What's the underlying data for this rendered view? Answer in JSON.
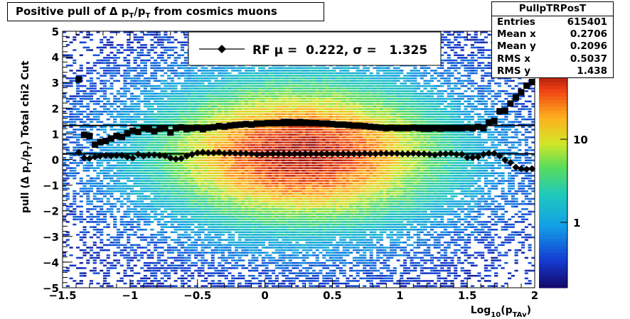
{
  "title": {
    "main": "Positive pull of Δ p",
    "sub1": "T",
    "mid": "/p",
    "sub2": "T",
    "tail": " from cosmics muons"
  },
  "stats": {
    "title": "PullpTRPosT",
    "rows": [
      {
        "label": "Entries",
        "value": "615401"
      },
      {
        "label": "Mean x",
        "value": "0.2706"
      },
      {
        "label": "Mean y",
        "value": "0.2096"
      },
      {
        "label": "RMS x",
        "value": "0.5037"
      },
      {
        "label": "RMS y",
        "value": "1.438"
      }
    ]
  },
  "legend": {
    "text": "RF μ =  0.222, σ =   1.325"
  },
  "chart_data": {
    "type": "heatmap",
    "title": "Positive pull of Δ pT/pT from cosmics muons",
    "xlabel": "Log10(pTAv)",
    "ylabel": "pull (Δ pT/pT)  Total chi2 Cut",
    "xlim": [
      -1.5,
      2
    ],
    "ylim": [
      -5,
      5
    ],
    "colorbar": {
      "scale": "log",
      "tick_labels": [
        "1",
        "10"
      ]
    },
    "x_tick_labels": [
      "−1.5",
      "−1",
      "−0.5",
      "0",
      "0.5",
      "1",
      "1.5",
      "2"
    ],
    "y_tick_labels": [
      "−5",
      "−4",
      "−3",
      "−2",
      "−1",
      "0",
      "1",
      "2",
      "3",
      "4",
      "5"
    ],
    "fit_lines": {
      "mean": 0.222,
      "sigma": 1.325
    },
    "series": [
      {
        "name": "σ",
        "x": [
          -1.38,
          -1.34,
          -1.3,
          -1.26,
          -1.22,
          -1.18,
          -1.14,
          -1.1,
          -1.06,
          -1.02,
          -0.98,
          -0.94,
          -0.9,
          -0.86,
          -0.82,
          -0.78,
          -0.74,
          -0.7,
          -0.66,
          -0.62,
          -0.58,
          -0.54,
          -0.5,
          -0.46,
          -0.42,
          -0.38,
          -0.34,
          -0.3,
          -0.26,
          -0.22,
          -0.18,
          -0.14,
          -0.1,
          -0.06,
          -0.02,
          0.02,
          0.06,
          0.1,
          0.14,
          0.18,
          0.22,
          0.26,
          0.3,
          0.34,
          0.38,
          0.42,
          0.46,
          0.5,
          0.54,
          0.58,
          0.62,
          0.66,
          0.7,
          0.74,
          0.78,
          0.82,
          0.86,
          0.9,
          0.94,
          0.98,
          1.02,
          1.06,
          1.1,
          1.14,
          1.18,
          1.22,
          1.26,
          1.3,
          1.34,
          1.38,
          1.42,
          1.46,
          1.5,
          1.54,
          1.58,
          1.62,
          1.66,
          1.7,
          1.74,
          1.78,
          1.82,
          1.86,
          1.9,
          1.94,
          1.98
        ],
        "y": [
          3.12,
          0.96,
          0.92,
          0.58,
          0.68,
          0.72,
          0.82,
          0.92,
          0.88,
          1.02,
          1.12,
          1.08,
          1.22,
          1.18,
          1.1,
          1.2,
          1.22,
          1.05,
          1.22,
          1.25,
          1.18,
          1.22,
          1.24,
          1.18,
          1.24,
          1.26,
          1.3,
          1.28,
          1.32,
          1.34,
          1.36,
          1.38,
          1.36,
          1.4,
          1.4,
          1.42,
          1.42,
          1.42,
          1.46,
          1.46,
          1.44,
          1.46,
          1.44,
          1.42,
          1.42,
          1.4,
          1.4,
          1.38,
          1.36,
          1.36,
          1.34,
          1.32,
          1.32,
          1.3,
          1.28,
          1.26,
          1.24,
          1.22,
          1.24,
          1.22,
          1.22,
          1.22,
          1.24,
          1.22,
          1.2,
          1.2,
          1.22,
          1.2,
          1.22,
          1.22,
          1.22,
          1.22,
          1.24,
          1.22,
          1.28,
          1.22,
          1.44,
          1.5,
          1.88,
          1.9,
          2.18,
          2.42,
          2.62,
          2.88,
          3.02
        ]
      },
      {
        "name": "μ",
        "x": [
          -1.38,
          -1.34,
          -1.3,
          -1.26,
          -1.22,
          -1.18,
          -1.14,
          -1.1,
          -1.06,
          -1.02,
          -0.98,
          -0.94,
          -0.9,
          -0.86,
          -0.82,
          -0.78,
          -0.74,
          -0.7,
          -0.66,
          -0.62,
          -0.58,
          -0.54,
          -0.5,
          -0.46,
          -0.42,
          -0.38,
          -0.34,
          -0.3,
          -0.26,
          -0.22,
          -0.18,
          -0.14,
          -0.1,
          -0.06,
          -0.02,
          0.02,
          0.06,
          0.1,
          0.14,
          0.18,
          0.22,
          0.26,
          0.3,
          0.34,
          0.38,
          0.42,
          0.46,
          0.5,
          0.54,
          0.58,
          0.62,
          0.66,
          0.7,
          0.74,
          0.78,
          0.82,
          0.86,
          0.9,
          0.94,
          0.98,
          1.02,
          1.06,
          1.1,
          1.14,
          1.18,
          1.22,
          1.26,
          1.3,
          1.34,
          1.38,
          1.42,
          1.46,
          1.5,
          1.54,
          1.58,
          1.62,
          1.66,
          1.7,
          1.74,
          1.78,
          1.82,
          1.86,
          1.9,
          1.94,
          1.98
        ],
        "y": [
          0.28,
          0.06,
          0.04,
          0.1,
          0.14,
          0.16,
          0.14,
          0.16,
          0.16,
          0.1,
          0.06,
          0.2,
          0.14,
          0.18,
          0.18,
          0.16,
          0.14,
          0.06,
          0.02,
          0.04,
          0.14,
          0.2,
          0.26,
          0.28,
          0.26,
          0.26,
          0.28,
          0.24,
          0.26,
          0.24,
          0.24,
          0.24,
          0.22,
          0.2,
          0.2,
          0.22,
          0.22,
          0.22,
          0.22,
          0.22,
          0.22,
          0.22,
          0.22,
          0.22,
          0.22,
          0.22,
          0.22,
          0.22,
          0.22,
          0.22,
          0.22,
          0.22,
          0.22,
          0.24,
          0.22,
          0.22,
          0.24,
          0.24,
          0.24,
          0.24,
          0.22,
          0.22,
          0.24,
          0.22,
          0.22,
          0.2,
          0.18,
          0.22,
          0.22,
          0.24,
          0.2,
          0.2,
          0.08,
          0.08,
          0.1,
          0.2,
          0.24,
          0.24,
          0.14,
          -0.02,
          -0.12,
          -0.3,
          -0.36,
          -0.38,
          -0.36
        ]
      }
    ]
  }
}
